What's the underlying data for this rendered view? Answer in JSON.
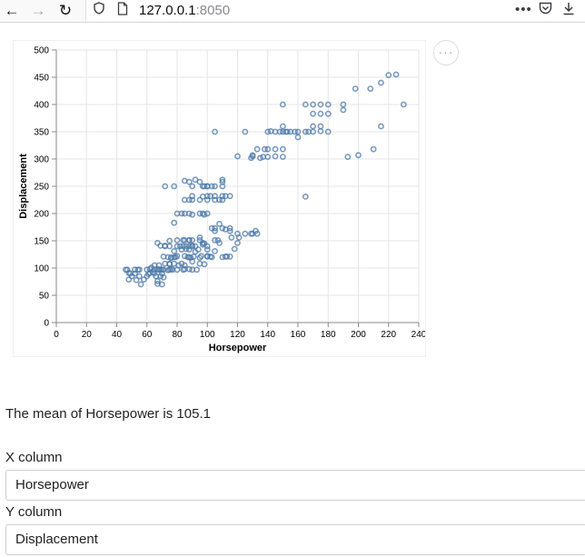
{
  "browser": {
    "url_host": "127.0.0.1",
    "url_port": ":8050",
    "icons": [
      "back-arrow-icon",
      "forward-arrow-icon",
      "reload-icon",
      "shield-icon",
      "page-icon",
      "more-dots-icon",
      "pocket-icon",
      "download-icon"
    ]
  },
  "chart_data": {
    "type": "scatter",
    "xlabel": "Horsepower",
    "ylabel": "Displacement",
    "xlim": [
      0,
      240
    ],
    "ylim": [
      0,
      500
    ],
    "x_ticks": [
      "0",
      "20",
      "40",
      "60",
      "80",
      "100",
      "120",
      "140",
      "160",
      "180",
      "200",
      "220",
      "240"
    ],
    "y_ticks": [
      "0",
      "50",
      "100",
      "150",
      "200",
      "250",
      "300",
      "350",
      "400",
      "450",
      "500"
    ],
    "grid": true,
    "marker": "open-circle",
    "color": "#4c78a8",
    "points": [
      [
        46,
        97
      ],
      [
        47,
        97
      ],
      [
        48,
        91
      ],
      [
        49,
        90
      ],
      [
        48,
        79
      ],
      [
        50,
        85
      ],
      [
        52,
        97
      ],
      [
        52,
        90
      ],
      [
        53,
        78
      ],
      [
        54,
        97
      ],
      [
        55,
        97
      ],
      [
        55,
        85
      ],
      [
        56,
        70
      ],
      [
        58,
        79
      ],
      [
        60,
        85
      ],
      [
        60,
        97
      ],
      [
        61,
        89
      ],
      [
        62,
        98
      ],
      [
        62,
        91
      ],
      [
        63,
        101
      ],
      [
        64,
        93
      ],
      [
        65,
        105
      ],
      [
        65,
        97
      ],
      [
        65,
        90
      ],
      [
        66,
        85
      ],
      [
        67,
        98
      ],
      [
        67,
        76
      ],
      [
        67,
        71
      ],
      [
        68,
        97
      ],
      [
        68,
        105
      ],
      [
        69,
        97
      ],
      [
        69,
        85
      ],
      [
        70,
        97
      ],
      [
        70,
        90
      ],
      [
        70,
        70
      ],
      [
        71,
        121
      ],
      [
        71,
        97
      ],
      [
        71,
        83
      ],
      [
        72,
        140
      ],
      [
        72,
        108
      ],
      [
        74,
        120
      ],
      [
        74,
        96
      ],
      [
        75,
        97
      ],
      [
        75,
        108
      ],
      [
        75,
        140
      ],
      [
        75,
        107
      ],
      [
        76,
        98
      ],
      [
        76,
        119
      ],
      [
        76,
        119
      ],
      [
        77,
        97
      ],
      [
        78,
        108
      ],
      [
        78,
        120
      ],
      [
        79,
        120
      ],
      [
        80,
        97
      ],
      [
        80,
        140
      ],
      [
        80,
        122
      ],
      [
        81,
        105
      ],
      [
        82,
        140
      ],
      [
        83,
        108
      ],
      [
        83,
        134
      ],
      [
        84,
        97
      ],
      [
        84,
        140
      ],
      [
        84,
        151
      ],
      [
        85,
        122
      ],
      [
        85,
        98
      ],
      [
        85,
        105
      ],
      [
        86,
        140
      ],
      [
        86,
        135
      ],
      [
        87,
        120
      ],
      [
        88,
        140
      ],
      [
        88,
        151
      ],
      [
        88,
        98
      ],
      [
        88,
        134
      ],
      [
        88,
        120
      ],
      [
        89,
        119
      ],
      [
        90,
        97
      ],
      [
        90,
        140
      ],
      [
        90,
        151
      ],
      [
        90,
        112
      ],
      [
        91,
        121
      ],
      [
        92,
        140
      ],
      [
        92,
        130
      ],
      [
        93,
        97
      ],
      [
        94,
        134
      ],
      [
        95,
        151
      ],
      [
        95,
        119
      ],
      [
        95,
        108
      ],
      [
        96,
        122
      ],
      [
        97,
        146
      ],
      [
        98,
        145
      ],
      [
        98,
        107
      ],
      [
        100,
        121
      ],
      [
        100,
        122
      ],
      [
        100,
        140
      ],
      [
        102,
        121
      ],
      [
        103,
        120
      ],
      [
        105,
        131
      ],
      [
        105,
        151
      ],
      [
        105,
        168
      ],
      [
        107,
        151
      ],
      [
        108,
        146
      ],
      [
        110,
        120
      ],
      [
        112,
        121
      ],
      [
        113,
        121
      ],
      [
        115,
        121
      ],
      [
        115,
        168
      ],
      [
        116,
        156
      ],
      [
        120,
        163
      ],
      [
        120,
        146
      ],
      [
        121,
        156
      ],
      [
        125,
        163
      ],
      [
        129,
        163
      ],
      [
        130,
        163
      ],
      [
        132,
        168
      ],
      [
        133,
        163
      ],
      [
        67,
        146
      ],
      [
        69,
        141
      ],
      [
        72,
        141
      ],
      [
        75,
        150
      ],
      [
        78,
        131
      ],
      [
        80,
        151
      ],
      [
        85,
        151
      ],
      [
        88,
        151
      ],
      [
        90,
        141
      ],
      [
        95,
        156
      ],
      [
        97,
        143
      ],
      [
        100,
        134
      ],
      [
        103,
        173
      ],
      [
        105,
        173
      ],
      [
        108,
        181
      ],
      [
        110,
        173
      ],
      [
        112,
        171
      ],
      [
        115,
        173
      ],
      [
        118,
        135
      ],
      [
        78,
        183
      ],
      [
        80,
        200
      ],
      [
        83,
        200
      ],
      [
        85,
        200
      ],
      [
        88,
        200
      ],
      [
        90,
        198
      ],
      [
        95,
        200
      ],
      [
        97,
        200
      ],
      [
        98,
        198
      ],
      [
        100,
        200
      ],
      [
        85,
        225
      ],
      [
        88,
        225
      ],
      [
        90,
        232
      ],
      [
        90,
        225
      ],
      [
        95,
        225
      ],
      [
        97,
        231
      ],
      [
        100,
        225
      ],
      [
        100,
        232
      ],
      [
        100,
        250
      ],
      [
        102,
        232
      ],
      [
        105,
        225
      ],
      [
        105,
        232
      ],
      [
        105,
        250
      ],
      [
        108,
        225
      ],
      [
        110,
        232
      ],
      [
        110,
        225
      ],
      [
        110,
        250
      ],
      [
        110,
        258
      ],
      [
        110,
        262
      ],
      [
        112,
        232
      ],
      [
        115,
        232
      ],
      [
        72,
        250
      ],
      [
        78,
        250
      ],
      [
        85,
        260
      ],
      [
        88,
        258
      ],
      [
        90,
        250
      ],
      [
        92,
        262
      ],
      [
        95,
        258
      ],
      [
        97,
        250
      ],
      [
        98,
        250
      ],
      [
        100,
        250
      ],
      [
        103,
        250
      ],
      [
        105,
        350
      ],
      [
        120,
        305
      ],
      [
        125,
        350
      ],
      [
        129,
        302
      ],
      [
        130,
        307
      ],
      [
        130,
        305
      ],
      [
        133,
        318
      ],
      [
        135,
        302
      ],
      [
        137,
        304
      ],
      [
        138,
        318
      ],
      [
        140,
        350
      ],
      [
        140,
        318
      ],
      [
        140,
        304
      ],
      [
        142,
        351
      ],
      [
        145,
        318
      ],
      [
        145,
        305
      ],
      [
        145,
        350
      ],
      [
        148,
        350
      ],
      [
        150,
        318
      ],
      [
        150,
        350
      ],
      [
        150,
        400
      ],
      [
        150,
        304
      ],
      [
        150,
        360
      ],
      [
        152,
        350
      ],
      [
        153,
        350
      ],
      [
        155,
        350
      ],
      [
        158,
        350
      ],
      [
        160,
        350
      ],
      [
        160,
        340
      ],
      [
        165,
        350
      ],
      [
        165,
        231
      ],
      [
        165,
        400
      ],
      [
        167,
        350
      ],
      [
        170,
        400
      ],
      [
        170,
        360
      ],
      [
        170,
        383
      ],
      [
        170,
        350
      ],
      [
        175,
        400
      ],
      [
        175,
        383
      ],
      [
        175,
        360
      ],
      [
        175,
        351
      ],
      [
        180,
        383
      ],
      [
        180,
        350
      ],
      [
        180,
        400
      ],
      [
        190,
        400
      ],
      [
        190,
        390
      ],
      [
        193,
        304
      ],
      [
        198,
        429
      ],
      [
        200,
        307
      ],
      [
        208,
        429
      ],
      [
        210,
        318
      ],
      [
        215,
        440
      ],
      [
        215,
        360
      ],
      [
        220,
        454
      ],
      [
        225,
        455
      ],
      [
        230,
        400
      ]
    ]
  },
  "chart_ui": {
    "actions_label": "···"
  },
  "summary": {
    "mean_text": "The mean of Horsepower is 105.1"
  },
  "controls": {
    "x_label": "X column",
    "x_value": "Horsepower",
    "y_label": "Y column",
    "y_value": "Displacement"
  }
}
